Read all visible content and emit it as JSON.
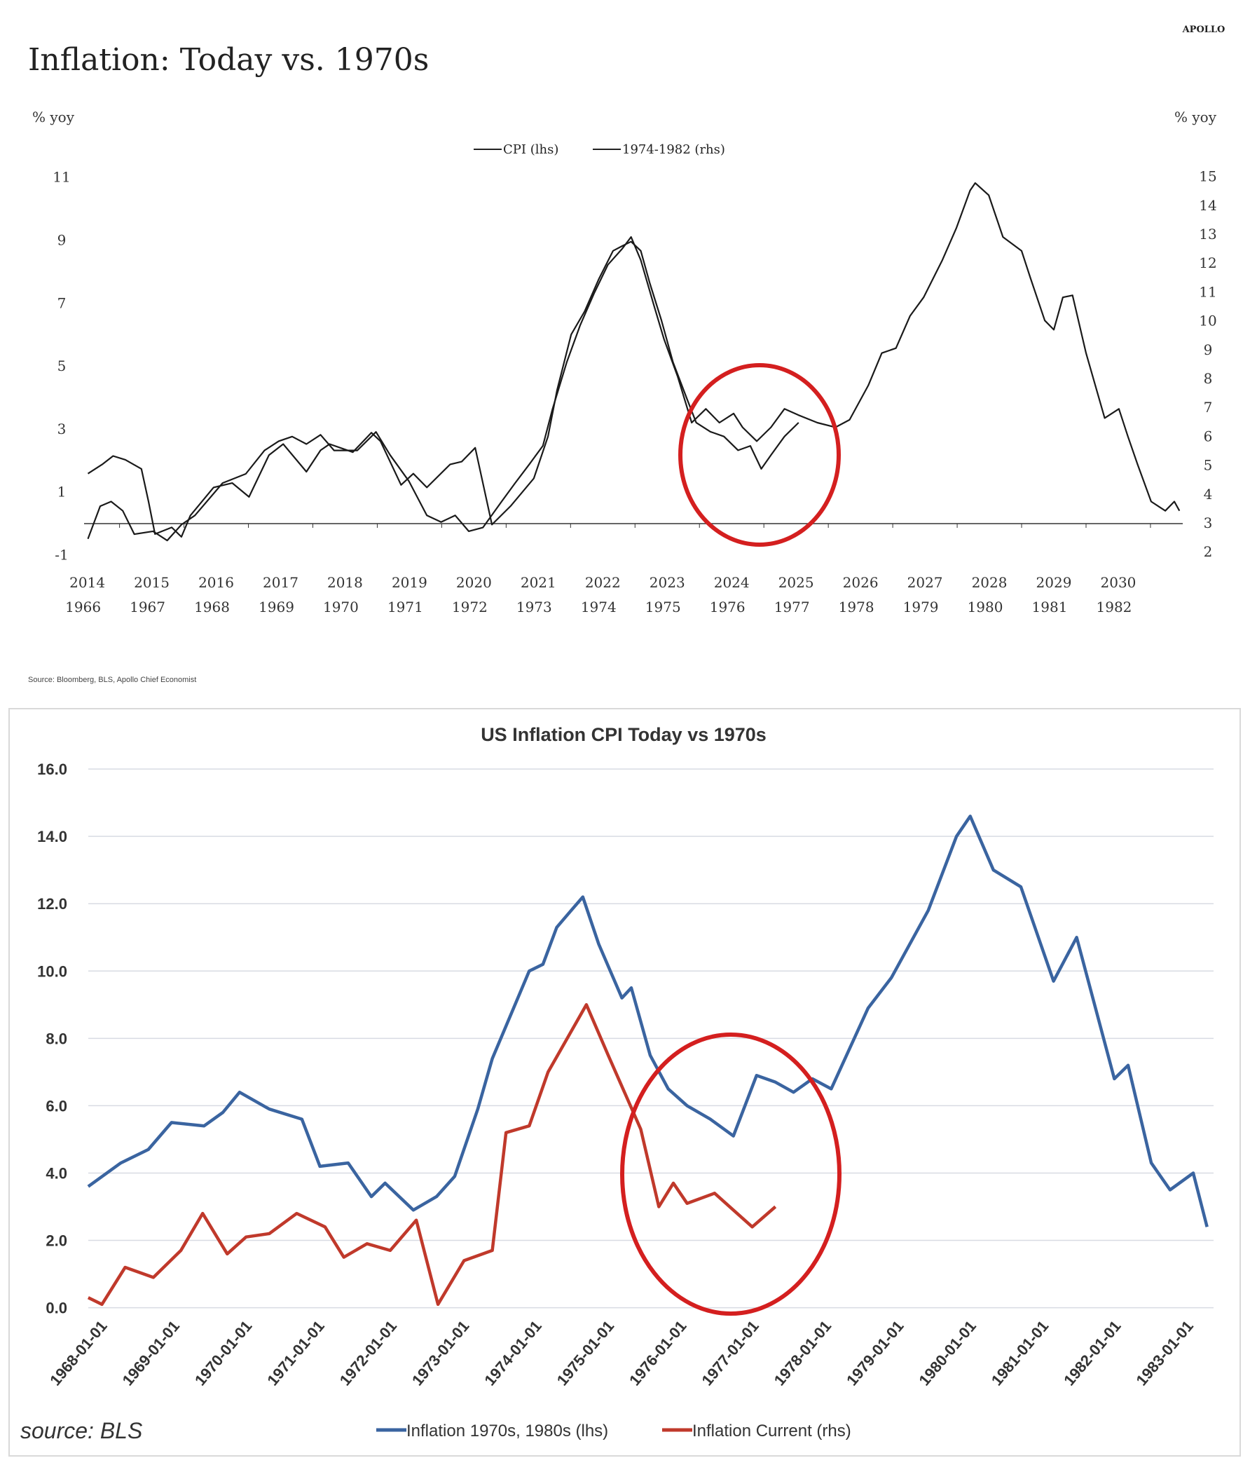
{
  "brand": "APOLLO",
  "source_top": "Source: Bloomberg, BLS, Apollo Chief Economist",
  "chart_data": [
    {
      "type": "line",
      "title": "Inflation: Today vs. 1970s",
      "ylabel_left": "% yoy",
      "ylabel_right": "% yoy",
      "legend_position": "top-center",
      "x_ticks_top": [
        "2014",
        "2015",
        "2016",
        "2017",
        "2018",
        "2019",
        "2020",
        "2021",
        "2022",
        "2023",
        "2024",
        "2025",
        "2026",
        "2027",
        "2028",
        "2029",
        "2030"
      ],
      "x_ticks_bottom": [
        "1966",
        "1967",
        "1968",
        "1969",
        "1970",
        "1971",
        "1972",
        "1973",
        "1974",
        "1975",
        "1976",
        "1977",
        "1978",
        "1979",
        "1980",
        "1981",
        "1982"
      ],
      "y_ticks_left": [
        "11",
        "9",
        "7",
        "5",
        "3",
        "1",
        "-1"
      ],
      "y_ticks_left_values": [
        11,
        9,
        7,
        5,
        3,
        1,
        -1
      ],
      "y_ticks_right": [
        "15",
        "14",
        "13",
        "12",
        "11",
        "10",
        "9",
        "8",
        "7",
        "6",
        "5",
        "4",
        "3",
        "2"
      ],
      "y_ticks_right_values": [
        15,
        14,
        13,
        12,
        11,
        10,
        9,
        8,
        7,
        6,
        5,
        4,
        3,
        2
      ],
      "ylim_left": [
        -1,
        11
      ],
      "ylim_right": [
        2,
        15
      ],
      "highlight": "red circle around 2023-2025 / 1975-1977",
      "series": [
        {
          "name": "CPI (lhs)",
          "axis": "left",
          "color": "#1a1a1a",
          "x": [
            2014.01,
            2014.23,
            2014.4,
            2014.59,
            2014.84,
            2014.95,
            2015.05,
            2015.31,
            2015.46,
            2015.6,
            2015.96,
            2016.25,
            2016.51,
            2016.82,
            2017.04,
            2017.4,
            2017.62,
            2017.76,
            2018.12,
            2018.41,
            2018.55,
            2018.87,
            2019.06,
            2019.27,
            2019.63,
            2019.81,
            2020.02,
            2020.28,
            2020.57,
            2020.93,
            2021.15,
            2021.29,
            2021.51,
            2021.72,
            2021.94,
            2022.16,
            2022.3,
            2022.44,
            2022.59,
            2022.73,
            2022.91,
            2023.09,
            2023.31,
            2023.45,
            2023.67,
            2023.88,
            2024.1,
            2024.29,
            2024.46,
            2024.61,
            2024.82,
            2025.04
          ],
          "y": [
            1.58,
            1.87,
            2.14,
            2.02,
            1.73,
            0.69,
            -0.34,
            -0.13,
            -0.43,
            0.25,
            1.14,
            1.28,
            0.84,
            2.17,
            2.52,
            1.64,
            2.32,
            2.52,
            2.26,
            2.88,
            2.61,
            1.22,
            1.58,
            1.14,
            1.87,
            1.96,
            2.4,
            -0.04,
            0.55,
            1.43,
            2.76,
            4.23,
            6.0,
            6.74,
            7.77,
            8.66,
            8.81,
            8.95,
            8.66,
            7.63,
            6.45,
            5.12,
            3.94,
            3.2,
            2.91,
            2.76,
            2.32,
            2.46,
            1.73,
            2.17,
            2.76,
            3.2
          ]
        },
        {
          "name": "1974-1982 (rhs)",
          "axis": "right",
          "color": "#1a1a1a",
          "x": [
            2014.01,
            2014.2,
            2014.37,
            2014.55,
            2014.73,
            2015.02,
            2015.24,
            2015.46,
            2015.67,
            2016.1,
            2016.46,
            2016.75,
            2016.97,
            2017.18,
            2017.4,
            2017.62,
            2017.83,
            2018.19,
            2018.48,
            2018.7,
            2018.99,
            2019.27,
            2019.49,
            2019.71,
            2019.92,
            2020.14,
            2020.43,
            2020.64,
            2020.86,
            2021.07,
            2021.22,
            2021.44,
            2021.65,
            2021.87,
            2022.08,
            2022.3,
            2022.44,
            2022.59,
            2022.8,
            2022.95,
            2023.16,
            2023.38,
            2023.6,
            2023.81,
            2024.03,
            2024.17,
            2024.39,
            2024.61,
            2024.82,
            2025.04,
            2025.33,
            2025.61,
            2025.83,
            2026.12,
            2026.33,
            2026.55,
            2026.77,
            2026.98,
            2027.27,
            2027.49,
            2027.7,
            2027.78,
            2027.99,
            2028.21,
            2028.5,
            2028.64,
            2028.86,
            2029.0,
            2029.14,
            2029.29,
            2029.5,
            2029.79,
            2030.01,
            2030.15,
            2030.3,
            2030.51,
            2030.73,
            2030.87,
            2030.95
          ],
          "y": [
            2.45,
            3.58,
            3.74,
            3.42,
            2.61,
            2.71,
            2.39,
            2.94,
            3.26,
            4.38,
            4.7,
            5.51,
            5.83,
            5.99,
            5.73,
            6.05,
            5.51,
            5.51,
            6.15,
            5.35,
            4.45,
            3.26,
            3.03,
            3.26,
            2.71,
            2.84,
            3.74,
            4.38,
            5.03,
            5.67,
            6.95,
            8.56,
            9.85,
            10.97,
            11.94,
            12.49,
            12.9,
            12.1,
            10.49,
            9.37,
            8.08,
            6.47,
            6.95,
            6.47,
            6.79,
            6.31,
            5.83,
            6.31,
            6.95,
            6.73,
            6.47,
            6.31,
            6.57,
            7.76,
            8.88,
            9.05,
            10.17,
            10.81,
            12.1,
            13.22,
            14.51,
            14.77,
            14.35,
            12.9,
            12.42,
            11.46,
            10.01,
            9.69,
            10.81,
            10.88,
            8.88,
            6.63,
            6.95,
            5.99,
            5.03,
            3.74,
            3.42,
            3.74,
            3.42
          ]
        }
      ]
    },
    {
      "type": "line",
      "title": "US Inflation CPI Today vs 1970s",
      "source": "source: BLS",
      "legend_position": "bottom",
      "grid": true,
      "ylim": [
        0,
        16
      ],
      "y_ticks": [
        "16.0",
        "14.0",
        "12.0",
        "10.0",
        "8.0",
        "6.0",
        "4.0",
        "2.0",
        "0.0"
      ],
      "y_tick_values": [
        16,
        14,
        12,
        10,
        8,
        6,
        4,
        2,
        0
      ],
      "x_ticks": [
        "1968-01-01",
        "1969-01-01",
        "1970-01-01",
        "1971-01-01",
        "1972-01-01",
        "1973-01-01",
        "1974-01-01",
        "1975-01-01",
        "1976-01-01",
        "1977-01-01",
        "1978-01-01",
        "1979-01-01",
        "1980-01-01",
        "1981-01-01",
        "1982-01-01",
        "1983-01-01"
      ],
      "highlight": "red circle around 1976-1977",
      "series": [
        {
          "name": "Inflation 1970s, 1980s (lhs)",
          "color": "#3a64a0",
          "x": [
            1968.0,
            1968.45,
            1968.83,
            1969.15,
            1969.6,
            1969.86,
            1970.09,
            1970.5,
            1970.95,
            1971.2,
            1971.59,
            1971.91,
            1972.1,
            1972.49,
            1972.81,
            1973.06,
            1973.38,
            1973.58,
            1974.09,
            1974.28,
            1974.47,
            1974.67,
            1974.83,
            1975.05,
            1975.37,
            1975.5,
            1975.76,
            1976.01,
            1976.27,
            1976.59,
            1976.91,
            1977.23,
            1977.49,
            1977.74,
            1978.0,
            1978.26,
            1978.77,
            1979.09,
            1979.6,
            1979.99,
            1980.18,
            1980.5,
            1980.88,
            1981.33,
            1981.65,
            1982.17,
            1982.36,
            1982.68,
            1982.94,
            1983.26,
            1983.45
          ],
          "y": [
            3.6,
            4.3,
            4.7,
            5.5,
            5.4,
            5.8,
            6.4,
            5.9,
            5.6,
            4.2,
            4.3,
            3.3,
            3.7,
            2.9,
            3.3,
            3.9,
            5.9,
            7.4,
            10.0,
            10.2,
            11.3,
            11.8,
            12.2,
            10.8,
            9.2,
            9.5,
            7.5,
            6.5,
            6.0,
            5.6,
            5.1,
            6.9,
            6.7,
            6.4,
            6.8,
            6.5,
            8.9,
            9.8,
            11.8,
            14.0,
            14.6,
            13.0,
            12.5,
            9.7,
            11.0,
            6.8,
            7.2,
            4.3,
            3.5,
            4.0,
            2.4
          ]
        },
        {
          "name": "Inflation Current (rhs)",
          "color": "#c0392b",
          "x": [
            1968.0,
            1968.19,
            1968.51,
            1968.9,
            1969.28,
            1969.58,
            1969.92,
            1970.18,
            1970.5,
            1970.88,
            1971.27,
            1971.53,
            1971.85,
            1972.17,
            1972.53,
            1972.83,
            1973.19,
            1973.58,
            1973.77,
            1974.09,
            1974.35,
            1974.88,
            1975.18,
            1975.63,
            1975.88,
            1976.08,
            1976.27,
            1976.65,
            1976.91,
            1977.17,
            1977.49
          ],
          "y": [
            0.3,
            0.1,
            1.2,
            0.9,
            1.7,
            2.8,
            1.6,
            2.1,
            2.2,
            2.8,
            2.4,
            1.5,
            1.9,
            1.7,
            2.6,
            0.1,
            1.4,
            1.7,
            5.2,
            5.4,
            7.0,
            9.0,
            7.5,
            5.3,
            3.0,
            3.7,
            3.1,
            3.4,
            2.9,
            2.4,
            3.0
          ]
        }
      ]
    }
  ]
}
